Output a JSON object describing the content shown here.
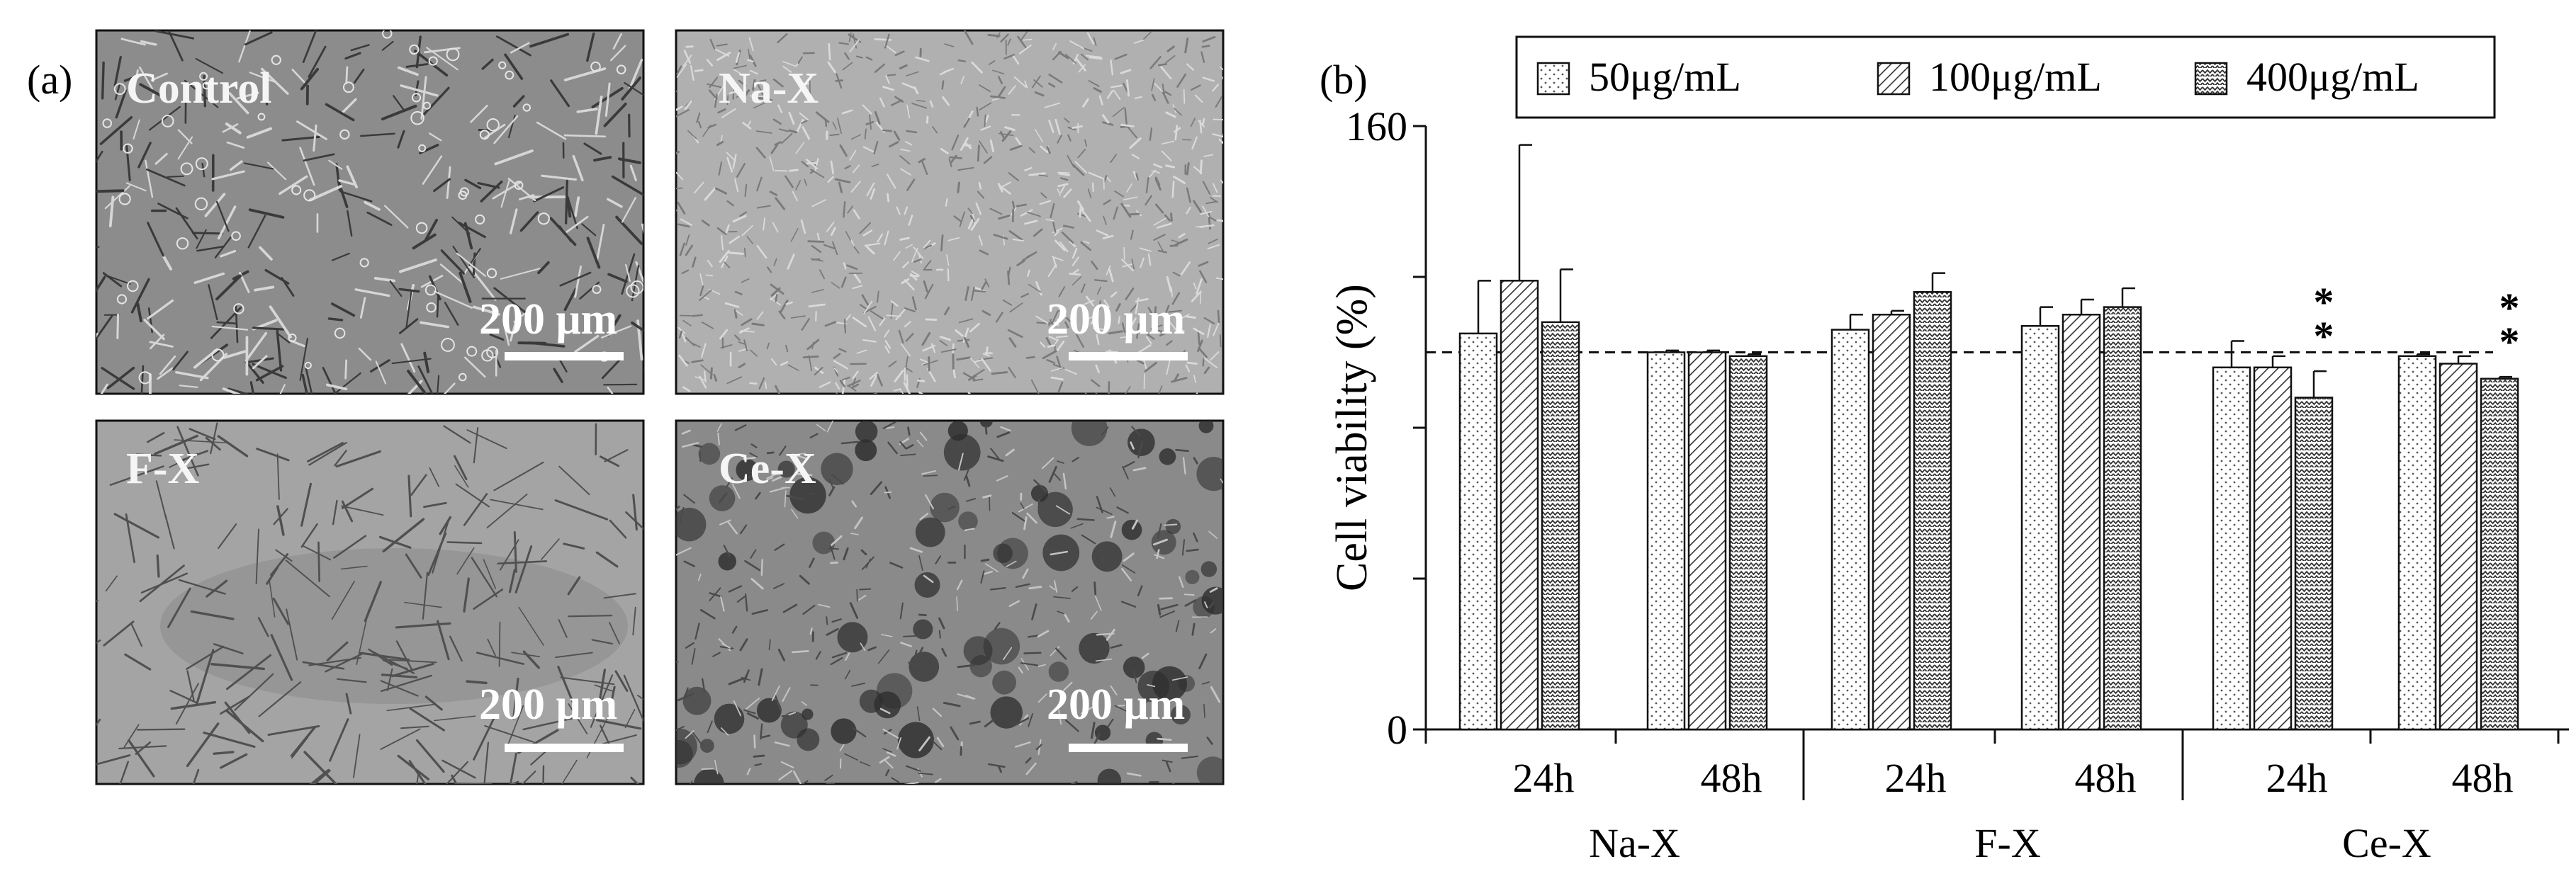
{
  "panel_a": {
    "label": "(a)",
    "images": [
      {
        "name": "Control",
        "scale_bar": "200 μm",
        "texture": "cells-sparse"
      },
      {
        "name": "Na-X",
        "scale_bar": "200 μm",
        "texture": "cells-dense"
      },
      {
        "name": "F-X",
        "scale_bar": "200 μm",
        "texture": "cells-spindle"
      },
      {
        "name": "Ce-X",
        "scale_bar": "200 μm",
        "texture": "cells-clumped"
      }
    ]
  },
  "chart_data": {
    "type": "bar",
    "panel_label": "(b)",
    "title": "",
    "ylabel": "Cell viability (%)",
    "xlabel": "",
    "ylim": [
      0,
      160
    ],
    "yticks": [
      0,
      40,
      80,
      120,
      160
    ],
    "ytick_labels": [
      "0",
      "",
      "",
      "",
      "160"
    ],
    "reference_line": 100,
    "grid": false,
    "legend_position": "top",
    "groups": [
      "Na-X",
      "F-X",
      "Ce-X"
    ],
    "timepoints": [
      "24h",
      "48h"
    ],
    "categories": [
      "Na-X 24h",
      "Na-X 48h",
      "F-X 24h",
      "F-X 48h",
      "Ce-X 24h",
      "Ce-X 48h"
    ],
    "series": [
      {
        "name": "50μg/mL",
        "pattern": "dots",
        "values": [
          105,
          100,
          106,
          107,
          96,
          99
        ],
        "errors": [
          14,
          0.5,
          4,
          5,
          7,
          0.5
        ]
      },
      {
        "name": "100μg/mL",
        "pattern": "diagonal",
        "values": [
          119,
          100,
          110,
          110,
          96,
          97
        ],
        "errors": [
          36,
          0.5,
          1,
          4,
          3,
          2
        ]
      },
      {
        "name": "400μg/mL",
        "pattern": "zigzag",
        "values": [
          108,
          99,
          116,
          112,
          88,
          93
        ],
        "errors": [
          14,
          0.5,
          5,
          5,
          7,
          0.5
        ]
      }
    ],
    "annotations": [
      {
        "category": "Ce-X 24h",
        "series": "400μg/mL",
        "text": "**"
      },
      {
        "category": "Ce-X 48h",
        "series": "400μg/mL",
        "text": "**"
      }
    ]
  }
}
